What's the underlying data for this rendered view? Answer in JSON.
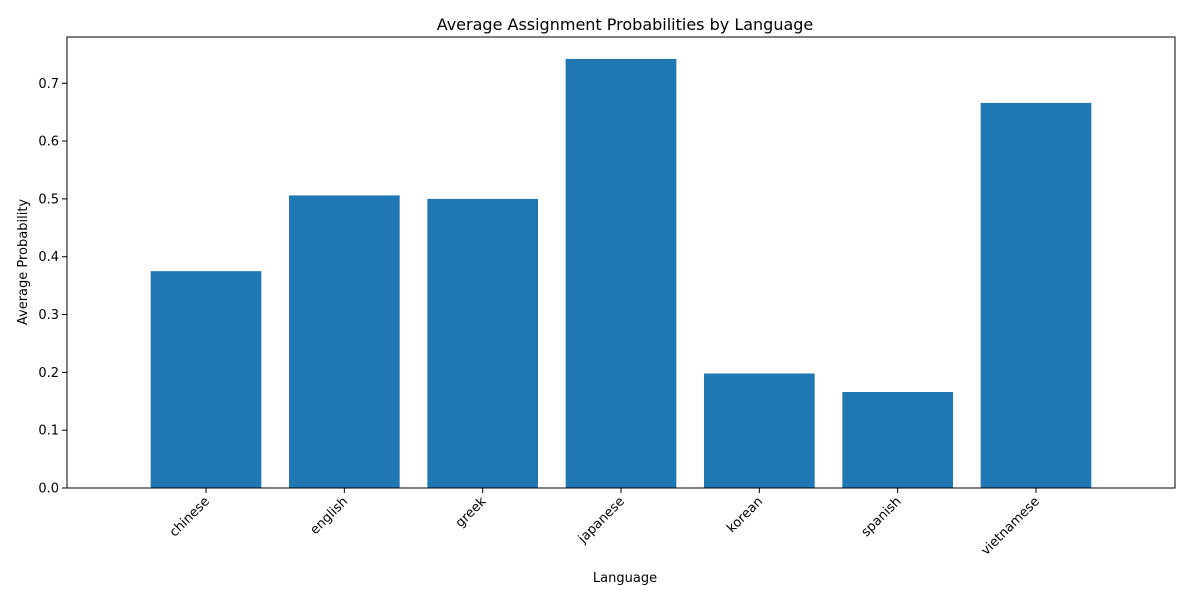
{
  "chart_data": {
    "type": "bar",
    "title": "Average Assignment Probabilities by Language",
    "xlabel": "Language",
    "ylabel": "Average Probability",
    "categories": [
      "chinese",
      "english",
      "greek",
      "japanese",
      "korean",
      "spanish",
      "vietnamese"
    ],
    "values": [
      0.375,
      0.506,
      0.5,
      0.742,
      0.198,
      0.166,
      0.666
    ],
    "ylim": [
      0,
      0.78
    ],
    "yticks": [
      "0.0",
      "0.1",
      "0.2",
      "0.3",
      "0.4",
      "0.5",
      "0.6",
      "0.7"
    ],
    "bar_color": "#1f77b4",
    "grid": false,
    "legend": "none"
  }
}
